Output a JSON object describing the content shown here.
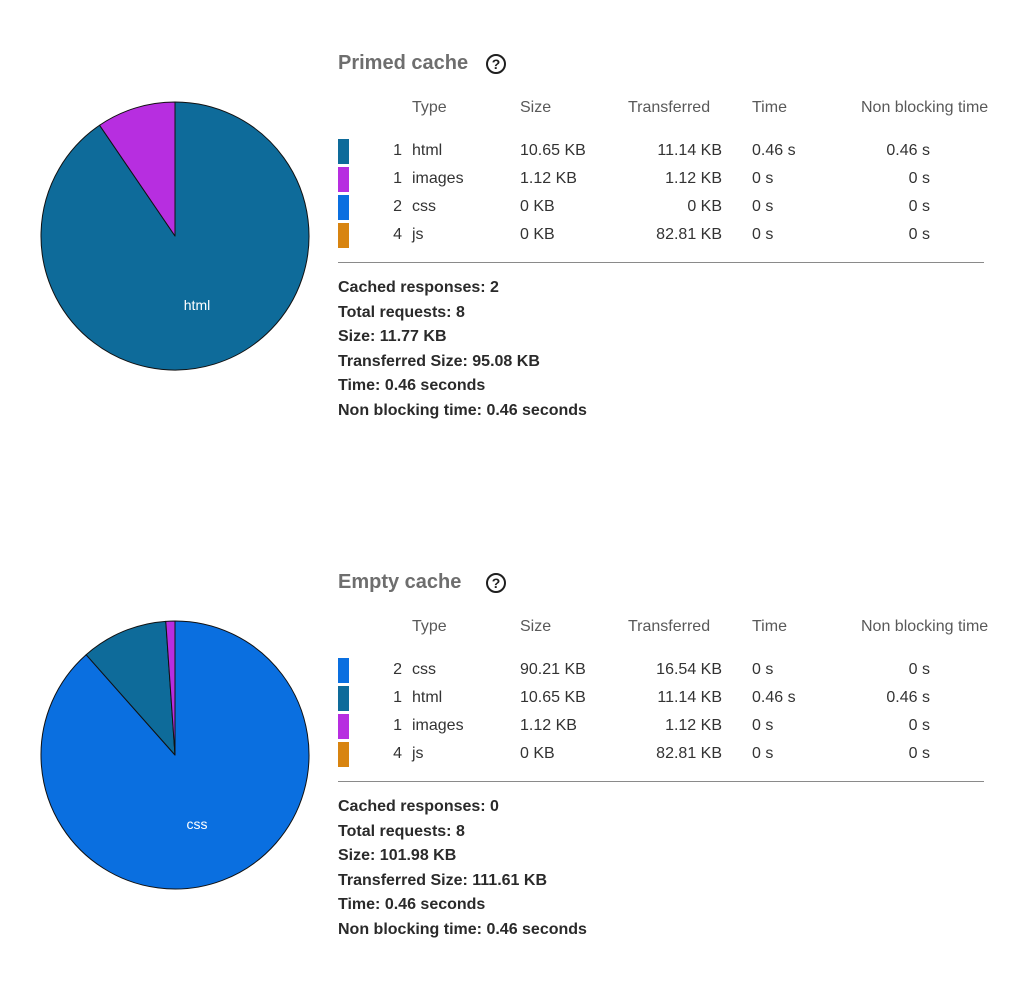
{
  "chart_data": [
    {
      "type": "pie",
      "title": "Primed cache",
      "slices": [
        {
          "label": "html",
          "count": 1,
          "size": "10.65 KB",
          "transferred": "11.14 KB",
          "time": "0.46 s",
          "non_blocking_time": "0.46 s",
          "value": 10.65,
          "color": "#0e6b9a"
        },
        {
          "label": "images",
          "count": 1,
          "size": "1.12 KB",
          "transferred": "1.12 KB",
          "time": "0 s",
          "non_blocking_time": "0 s",
          "value": 1.12,
          "color": "#b72ee0"
        },
        {
          "label": "css",
          "count": 2,
          "size": "0 KB",
          "transferred": "0 KB",
          "time": "0 s",
          "non_blocking_time": "0 s",
          "value": 0,
          "color": "#0a6fe0"
        },
        {
          "label": "js",
          "count": 4,
          "size": "0 KB",
          "transferred": "82.81 KB",
          "time": "0 s",
          "non_blocking_time": "0 s",
          "value": 0,
          "color": "#d88410"
        }
      ],
      "pie_label": "html",
      "summary": {
        "cached_responses": "Cached responses: 2",
        "total_requests": "Total requests: 8",
        "size": "Size: 11.77 KB",
        "transferred_size": "Transferred Size: 95.08 KB",
        "time": "Time: 0.46 seconds",
        "non_blocking_time": "Non blocking time: 0.46 seconds"
      }
    },
    {
      "type": "pie",
      "title": "Empty cache",
      "slices": [
        {
          "label": "css",
          "count": 2,
          "size": "90.21 KB",
          "transferred": "16.54 KB",
          "time": "0 s",
          "non_blocking_time": "0 s",
          "value": 90.21,
          "color": "#0a6fe0"
        },
        {
          "label": "html",
          "count": 1,
          "size": "10.65 KB",
          "transferred": "11.14 KB",
          "time": "0.46 s",
          "non_blocking_time": "0.46 s",
          "value": 10.65,
          "color": "#0e6b9a"
        },
        {
          "label": "images",
          "count": 1,
          "size": "1.12 KB",
          "transferred": "1.12 KB",
          "time": "0 s",
          "non_blocking_time": "0 s",
          "value": 1.12,
          "color": "#b72ee0"
        },
        {
          "label": "js",
          "count": 4,
          "size": "0 KB",
          "transferred": "82.81 KB",
          "time": "0 s",
          "non_blocking_time": "0 s",
          "value": 0,
          "color": "#d88410"
        }
      ],
      "pie_label": "css",
      "summary": {
        "cached_responses": "Cached responses: 0",
        "total_requests": "Total requests: 8",
        "size": "Size: 101.98 KB",
        "transferred_size": "Transferred Size: 111.61 KB",
        "time": "Time: 0.46 seconds",
        "non_blocking_time": "Non blocking time: 0.46 seconds"
      }
    }
  ],
  "table_headers": {
    "type": "Type",
    "size": "Size",
    "transferred": "Transferred",
    "time": "Time",
    "non_blocking_time": "Non blocking time"
  },
  "icons": {
    "help": "question-circle-icon"
  },
  "help_glyph": "?"
}
